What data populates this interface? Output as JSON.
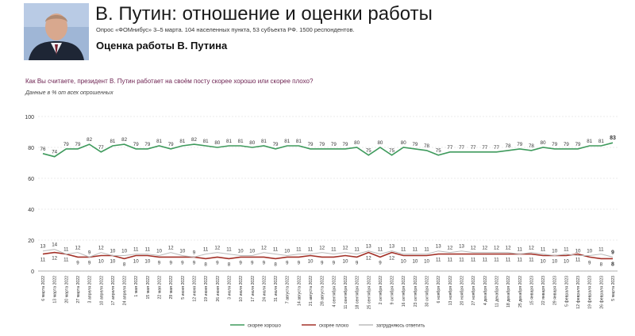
{
  "header": {
    "title": "В. Путин: отношение и оценки работы",
    "subtitle": "Опрос «ФОМнибус» 3–5 марта. 104 населенных пункта, 53 субъекта РФ. 1500 респондентов.",
    "section_title": "Оценка работы В. Путина",
    "question": "Как Вы считаете, президент В. Путин работает на своём посту скорее хорошо или скорее плохо?",
    "note": "Данные в % от всех опрошенных",
    "portrait_icon": "portrait-photo"
  },
  "chart_data": {
    "type": "line",
    "ylim": [
      0,
      100
    ],
    "yticks": [
      0,
      20,
      40,
      60,
      80,
      100
    ],
    "grid": true,
    "legend_position": "bottom",
    "categories": [
      "6 марта 2022",
      "13 марта 2022",
      "20 марта 2022",
      "27 марта 2022",
      "3 апреля 2022",
      "10 апреля 2022",
      "17 апреля 2022",
      "24 апреля 2022",
      "1 мая 2022",
      "15 мая 2022",
      "22 мая 2022",
      "29 мая 2022",
      "5 июня 2022",
      "12 июня 2022",
      "19 июня 2022",
      "26 июня 2022",
      "3 июля 2022",
      "10 июля 2022",
      "17 июля 2022",
      "24 июля 2022",
      "31 июля 2022",
      "7 августа 2022",
      "14 августа 2022",
      "21 августа 2022",
      "28 августа 2022",
      "4 сентября 2022",
      "11 сентября 2022",
      "18 сентября 2022",
      "25 сентября 2022",
      "2 октября 2022",
      "9 октября 2022",
      "16 октября 2022",
      "23 октября 2022",
      "30 октября 2022",
      "6 ноября 2022",
      "13 ноября 2022",
      "20 ноября 2022",
      "27 ноября 2022",
      "4 декабря 2022",
      "11 декабря 2022",
      "18 декабря 2022",
      "25 декабря 2022",
      "15 января 2023",
      "22 января 2023",
      "29 января 2023",
      "5 февраля 2023",
      "12 февраля 2023",
      "19 февраля 2023",
      "26 февраля 2023",
      "5 марта 2023"
    ],
    "series": [
      {
        "name": "скорее хорошо",
        "color": "#3e9a5c",
        "label_position": "above",
        "values": [
          76,
          74,
          79,
          79,
          82,
          77,
          81,
          82,
          79,
          79,
          81,
          79,
          81,
          82,
          81,
          80,
          81,
          81,
          80,
          81,
          79,
          81,
          81,
          79,
          79,
          79,
          79,
          80,
          75,
          80,
          75,
          80,
          79,
          78,
          75,
          77,
          77,
          77,
          77,
          77,
          78,
          79,
          78,
          80,
          79,
          79,
          79,
          81,
          81,
          83
        ]
      },
      {
        "name": "скорее плохо",
        "color": "#a33128",
        "label_position": "below",
        "values": [
          11,
          12,
          11,
          9,
          9,
          10,
          10,
          8,
          10,
          10,
          9,
          9,
          9,
          9,
          8,
          9,
          8,
          9,
          9,
          9,
          8,
          9,
          9,
          10,
          9,
          9,
          10,
          9,
          12,
          9,
          12,
          10,
          10,
          10,
          11,
          11,
          11,
          11,
          11,
          11,
          11,
          11,
          11,
          10,
          10,
          10,
          11,
          9,
          8,
          8
        ]
      },
      {
        "name": "затрудняюсь ответить",
        "color": "#bbbbbb",
        "label_position": "above",
        "values": [
          13,
          14,
          11,
          12,
          9,
          12,
          10,
          10,
          11,
          11,
          10,
          12,
          10,
          9,
          11,
          12,
          11,
          10,
          10,
          12,
          11,
          10,
          11,
          11,
          12,
          11,
          12,
          11,
          13,
          11,
          13,
          11,
          11,
          11,
          13,
          12,
          13,
          12,
          12,
          12,
          12,
          11,
          12,
          11,
          10,
          11,
          10,
          10,
          11,
          9
        ]
      }
    ]
  }
}
